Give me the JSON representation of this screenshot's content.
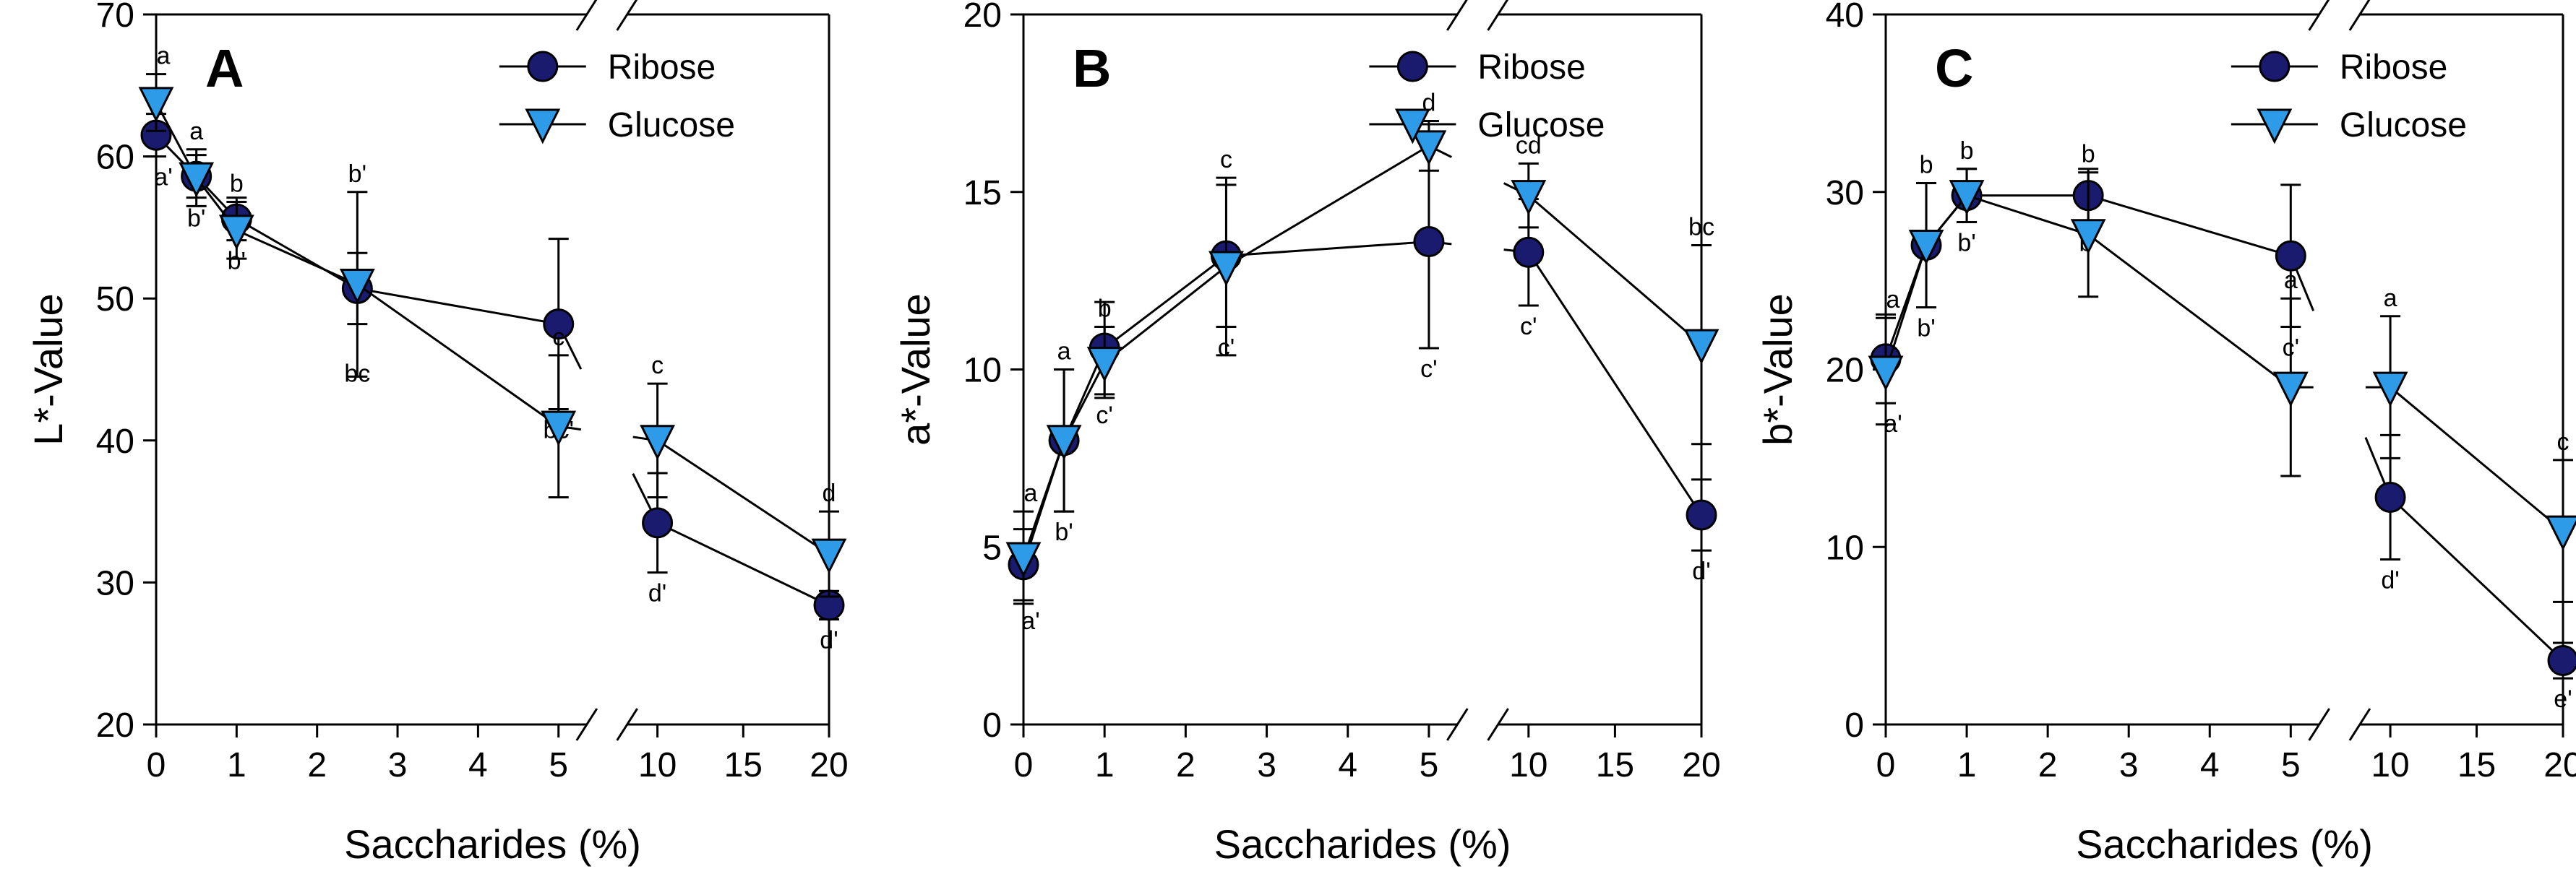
{
  "chart_data": [
    {
      "type": "line",
      "panel": "A",
      "xlabel": "Saccharides (%)",
      "ylabel": "L*-Value",
      "ylim": [
        20,
        70
      ],
      "yticks": [
        20,
        30,
        40,
        50,
        60,
        70
      ],
      "x_ticks": [
        "0",
        "1",
        "2",
        "3",
        "4",
        "5",
        "10",
        "15",
        "20"
      ],
      "x_break": "between 5 and 10",
      "grid": false,
      "legend_position": "top-right",
      "series": [
        {
          "name": "Ribose",
          "marker": "circle",
          "color": "#1a1a6e",
          "x": [
            0,
            0.5,
            1,
            2.5,
            5,
            10,
            20
          ],
          "y": [
            61.5,
            58.6,
            55.6,
            50.7,
            48.2,
            34.2,
            28.4
          ],
          "err": [
            1.5,
            1.5,
            1.5,
            2.5,
            6.0,
            3.5,
            1.0
          ],
          "labels": [
            "a'",
            "b'",
            "b'",
            "",
            "bc'",
            "d'",
            "d'"
          ]
        },
        {
          "name": "Glucose",
          "marker": "triangle-down",
          "color": "#2e9be8",
          "x": [
            0,
            0.5,
            1,
            2.5,
            5,
            10,
            20
          ],
          "y": [
            63.8,
            58.5,
            54.8,
            51.0,
            41.0,
            40.0,
            32.0
          ],
          "err": [
            2.0,
            2.0,
            2.0,
            6.5,
            5.0,
            4.0,
            3.0
          ],
          "labels": [
            "a",
            "a",
            "b",
            "b'",
            "c",
            "c",
            "d"
          ]
        }
      ],
      "extra_labels": [
        {
          "x": 2.5,
          "text": "bc"
        }
      ]
    },
    {
      "type": "line",
      "panel": "B",
      "xlabel": "Saccharides (%)",
      "ylabel": "a*-Value",
      "ylim": [
        0,
        20
      ],
      "yticks": [
        0,
        5,
        10,
        15,
        20
      ],
      "x_ticks": [
        "0",
        "1",
        "2",
        "3",
        "4",
        "5",
        "10",
        "15",
        "20"
      ],
      "x_break": "between 5 and 10",
      "grid": false,
      "legend_position": "top-right",
      "series": [
        {
          "name": "Ribose",
          "marker": "circle",
          "color": "#1a1a6e",
          "x": [
            0,
            0.5,
            1,
            2.5,
            5,
            10,
            20
          ],
          "y": [
            4.5,
            8.0,
            10.6,
            13.2,
            13.6,
            13.3,
            5.9
          ],
          "err": [
            1.0,
            2.0,
            1.3,
            2.0,
            3.0,
            1.5,
            1.0
          ],
          "labels": [
            "a'",
            "b'",
            "c'",
            "c'",
            "c'",
            "c'",
            "d'"
          ]
        },
        {
          "name": "Glucose",
          "marker": "triangle-down",
          "color": "#2e9be8",
          "x": [
            0,
            0.5,
            1,
            2.5,
            5,
            10,
            20
          ],
          "y": [
            4.7,
            8.0,
            10.2,
            12.9,
            16.3,
            14.9,
            10.7
          ],
          "err": [
            1.3,
            2.0,
            1.0,
            2.5,
            0.7,
            0.9,
            2.8
          ],
          "labels": [
            "a",
            "a",
            "b",
            "c",
            "d",
            "cd",
            "bc"
          ]
        }
      ]
    },
    {
      "type": "line",
      "panel": "C",
      "xlabel": "Saccharides (%)",
      "ylabel": "b*-Value",
      "ylim": [
        0,
        40
      ],
      "yticks": [
        0,
        10,
        20,
        30,
        40
      ],
      "x_ticks": [
        "0",
        "1",
        "2",
        "3",
        "4",
        "5",
        "10",
        "15",
        "20"
      ],
      "x_break": "between 5 and 10",
      "grid": false,
      "legend_position": "top-right",
      "series": [
        {
          "name": "Ribose",
          "marker": "circle",
          "color": "#1a1a6e",
          "x": [
            0,
            0.5,
            1,
            2.5,
            5,
            10,
            20
          ],
          "y": [
            20.6,
            27.0,
            29.8,
            29.8,
            26.4,
            12.8,
            3.6
          ],
          "err": [
            2.5,
            3.5,
            1.5,
            1.5,
            4.0,
            3.5,
            1.0
          ],
          "labels": [
            "a'",
            "b'",
            "b'",
            "b'",
            "c'",
            "d'",
            "e'"
          ]
        },
        {
          "name": "Glucose",
          "marker": "triangle-down",
          "color": "#2e9be8",
          "x": [
            0,
            0.5,
            1,
            2.5,
            5,
            10,
            20
          ],
          "y": [
            19.9,
            27.0,
            29.8,
            27.6,
            19.0,
            19.0,
            10.9
          ],
          "err": [
            3.0,
            3.5,
            1.5,
            3.5,
            5.0,
            4.0,
            4.0
          ],
          "labels": [
            "a",
            "b",
            "b",
            "b",
            "a",
            "a",
            "c"
          ]
        }
      ]
    }
  ]
}
